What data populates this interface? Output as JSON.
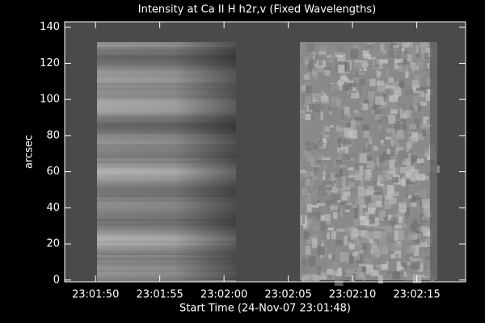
{
  "chart_data": {
    "type": "image",
    "title": "Intensity at Ca II H h2r,v (Fixed Wavelengths)",
    "x_label": "Start Time (24-Nov-07 23:01:48)",
    "y_label": "arcsec",
    "xlim": [
      -0.4,
      30.8
    ],
    "xticks": [
      {
        "value": 2,
        "label": "23:01:50"
      },
      {
        "value": 7,
        "label": "23:01:55"
      },
      {
        "value": 12,
        "label": "23:02:00"
      },
      {
        "value": 17,
        "label": "23:02:05"
      },
      {
        "value": 22,
        "label": "23:02:10"
      },
      {
        "value": 27,
        "label": "23:02:15"
      }
    ],
    "ylim": [
      -1,
      143
    ],
    "yticks": [
      0,
      20,
      40,
      60,
      80,
      100,
      120,
      140
    ]
  }
}
